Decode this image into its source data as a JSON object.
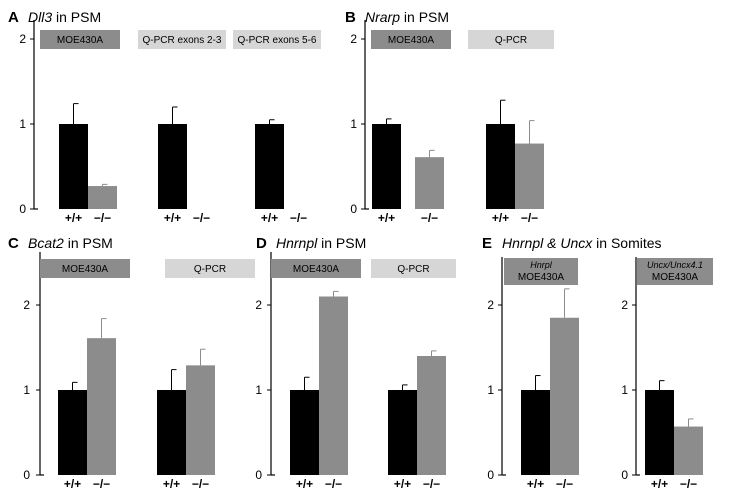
{
  "colors": {
    "wildtype": "#000000",
    "mutant": "#8c8c8c",
    "box_dark": "#8c8c8c",
    "box_light": "#d6d6d6"
  },
  "chart_data": [
    {
      "panel": "A",
      "type": "bar",
      "title": {
        "gene": "Dll3",
        "rest": " in PSM"
      },
      "ylim": [
        0,
        2
      ],
      "yticks": [
        "0",
        "1",
        "2"
      ],
      "groups": [
        {
          "label": "MOE430A",
          "box": "dark",
          "categories": [
            "+/+",
            "−/−"
          ],
          "values": [
            1.0,
            0.27
          ],
          "errors": [
            0.24,
            0.02
          ]
        },
        {
          "label": "Q-PCR exons 2-3",
          "box": "light",
          "categories": [
            "+/+",
            "−/−"
          ],
          "values": [
            1.0,
            0.0
          ],
          "errors": [
            0.2,
            0.0
          ]
        },
        {
          "label": "Q-PCR exons 5-6",
          "box": "light",
          "categories": [
            "+/+",
            "−/−"
          ],
          "values": [
            1.0,
            0.0
          ],
          "errors": [
            0.05,
            0.0
          ]
        }
      ]
    },
    {
      "panel": "B",
      "type": "bar",
      "title": {
        "gene": "Nrarp",
        "rest": " in PSM"
      },
      "ylim": [
        0,
        2
      ],
      "yticks": [
        "0",
        "1",
        "2"
      ],
      "groups": [
        {
          "label": "MOE430A",
          "box": "dark",
          "categories": [
            "+/+",
            "−/−"
          ],
          "values": [
            1.0,
            0.61
          ],
          "errors": [
            0.06,
            0.08
          ]
        },
        {
          "label": "Q-PCR",
          "box": "light",
          "categories": [
            "+/+",
            "−/−"
          ],
          "values": [
            1.0,
            0.77
          ],
          "errors": [
            0.28,
            0.27
          ]
        }
      ]
    },
    {
      "panel": "C",
      "type": "bar",
      "title": {
        "gene": "Bcat2",
        "rest": " in PSM"
      },
      "ylim": [
        0,
        2.3
      ],
      "yticks": [
        "0",
        "1",
        "2"
      ],
      "groups": [
        {
          "label": "MOE430A",
          "box": "dark",
          "categories": [
            "+/+",
            "−/−"
          ],
          "values": [
            1.0,
            1.61
          ],
          "errors": [
            0.09,
            0.23
          ]
        },
        {
          "label": "Q-PCR",
          "box": "light",
          "categories": [
            "+/+",
            "−/−"
          ],
          "values": [
            1.0,
            1.29
          ],
          "errors": [
            0.24,
            0.19
          ]
        }
      ]
    },
    {
      "panel": "D",
      "type": "bar",
      "title": {
        "gene": "Hnrnpl",
        "rest": " in PSM"
      },
      "ylim": [
        0,
        2.3
      ],
      "yticks": [
        "0",
        "1",
        "2"
      ],
      "groups": [
        {
          "label": "MOE430A",
          "box": "dark",
          "categories": [
            "+/+",
            "−/−"
          ],
          "values": [
            1.0,
            2.1
          ],
          "errors": [
            0.15,
            0.06
          ]
        },
        {
          "label": "Q-PCR",
          "box": "light",
          "categories": [
            "+/+",
            "−/−"
          ],
          "values": [
            1.0,
            1.4
          ],
          "errors": [
            0.06,
            0.06
          ]
        }
      ]
    },
    {
      "panel": "E",
      "type": "bar",
      "title": {
        "gene": "Hnrnpl & Uncx",
        "rest": " in Somites"
      },
      "ylim": [
        0,
        2.3
      ],
      "yticks": [
        "0",
        "1",
        "2"
      ],
      "groups": [
        {
          "label_top": "Hnrpl",
          "label": "MOE430A",
          "box": "dark",
          "categories": [
            "+/+",
            "−/−"
          ],
          "values": [
            1.0,
            1.85
          ],
          "errors": [
            0.17,
            0.34
          ]
        }
      ]
    },
    {
      "panel": "",
      "type": "bar",
      "title": {
        "gene": "",
        "rest": ""
      },
      "ylim": [
        0,
        2.3
      ],
      "yticks": [
        "0",
        "1",
        "2"
      ],
      "groups": [
        {
          "label_top": "Uncx/Uncx4.1",
          "label": "MOE430A",
          "box": "dark",
          "categories": [
            "+/+",
            "−/−"
          ],
          "values": [
            1.0,
            0.57
          ],
          "errors": [
            0.11,
            0.09
          ]
        }
      ]
    }
  ]
}
